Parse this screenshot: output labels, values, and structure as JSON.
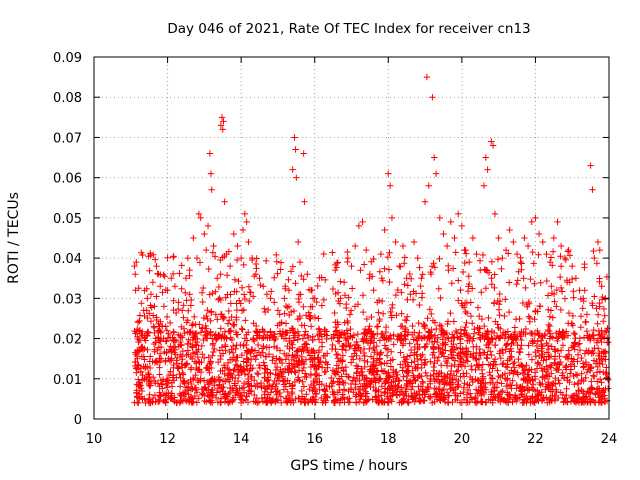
{
  "chart_data": {
    "type": "scatter",
    "title": "Day 046 of 2021, Rate Of TEC Index for receiver cn13",
    "xlabel": "GPS time / hours",
    "ylabel": "ROTI / TECUs",
    "xlim": [
      10,
      24
    ],
    "ylim": [
      0,
      0.09
    ],
    "x_ticks": [
      10,
      12,
      14,
      16,
      18,
      20,
      22,
      24
    ],
    "y_ticks": [
      0,
      0.01,
      0.02,
      0.03,
      0.04,
      0.05,
      0.06,
      0.07,
      0.08,
      0.09
    ],
    "x_tick_labels": [
      "10",
      "12",
      "14",
      "16",
      "18",
      "20",
      "22",
      "24"
    ],
    "y_tick_labels": [
      "0",
      "0.01",
      "0.02",
      "0.03",
      "0.04",
      "0.05",
      "0.06",
      "0.07",
      "0.08",
      "0.09"
    ],
    "grid": true,
    "marker": "+",
    "color": "#ff0000",
    "series": [
      {
        "name": "ROTI",
        "points": [
          [
            11.1,
            0.038
          ],
          [
            11.12,
            0.036
          ],
          [
            11.15,
            0.039
          ],
          [
            11.13,
            0.032
          ],
          [
            11.18,
            0.015
          ],
          [
            11.25,
            0.022
          ],
          [
            11.35,
            0.027
          ],
          [
            11.45,
            0.03
          ],
          [
            11.55,
            0.031
          ],
          [
            11.6,
            0.034
          ],
          [
            11.7,
            0.038
          ],
          [
            11.75,
            0.036
          ],
          [
            11.8,
            0.033
          ],
          [
            11.9,
            0.028
          ],
          [
            12.0,
            0.032
          ],
          [
            12.1,
            0.035
          ],
          [
            12.2,
            0.033
          ],
          [
            12.3,
            0.029
          ],
          [
            12.4,
            0.027
          ],
          [
            12.5,
            0.035
          ],
          [
            12.55,
            0.04
          ],
          [
            12.6,
            0.037
          ],
          [
            12.7,
            0.045
          ],
          [
            12.8,
            0.04
          ],
          [
            12.85,
            0.051
          ],
          [
            12.9,
            0.05
          ],
          [
            13.0,
            0.046
          ],
          [
            13.05,
            0.042
          ],
          [
            13.1,
            0.048
          ],
          [
            13.15,
            0.066
          ],
          [
            13.18,
            0.061
          ],
          [
            13.2,
            0.057
          ],
          [
            13.25,
            0.043
          ],
          [
            13.35,
            0.035
          ],
          [
            13.45,
            0.073
          ],
          [
            13.48,
            0.075
          ],
          [
            13.5,
            0.072
          ],
          [
            13.52,
            0.074
          ],
          [
            13.55,
            0.054
          ],
          [
            13.6,
            0.041
          ],
          [
            13.7,
            0.038
          ],
          [
            13.8,
            0.046
          ],
          [
            13.9,
            0.043
          ],
          [
            14.0,
            0.04
          ],
          [
            14.05,
            0.047
          ],
          [
            14.1,
            0.051
          ],
          [
            14.15,
            0.049
          ],
          [
            14.2,
            0.044
          ],
          [
            14.3,
            0.04
          ],
          [
            14.4,
            0.036
          ],
          [
            14.5,
            0.035
          ],
          [
            14.6,
            0.033
          ],
          [
            14.7,
            0.031
          ],
          [
            14.8,
            0.03
          ],
          [
            14.9,
            0.029
          ],
          [
            15.0,
            0.027
          ],
          [
            15.1,
            0.024
          ],
          [
            15.2,
            0.033
          ],
          [
            15.3,
            0.032
          ],
          [
            15.4,
            0.062
          ],
          [
            15.45,
            0.07
          ],
          [
            15.48,
            0.067
          ],
          [
            15.5,
            0.06
          ],
          [
            15.55,
            0.044
          ],
          [
            15.6,
            0.039
          ],
          [
            15.7,
            0.066
          ],
          [
            15.72,
            0.054
          ],
          [
            15.8,
            0.036
          ],
          [
            15.9,
            0.032
          ],
          [
            16.0,
            0.03
          ],
          [
            16.1,
            0.025
          ],
          [
            16.2,
            0.018
          ],
          [
            16.3,
            0.014
          ],
          [
            16.4,
            0.008
          ],
          [
            16.6,
            0.022
          ],
          [
            16.7,
            0.03
          ],
          [
            16.8,
            0.034
          ],
          [
            16.9,
            0.04
          ],
          [
            17.0,
            0.038
          ],
          [
            17.1,
            0.043
          ],
          [
            17.2,
            0.048
          ],
          [
            17.3,
            0.049
          ],
          [
            17.4,
            0.042
          ],
          [
            17.5,
            0.036
          ],
          [
            17.6,
            0.032
          ],
          [
            17.7,
            0.029
          ],
          [
            17.8,
            0.041
          ],
          [
            17.9,
            0.047
          ],
          [
            18.0,
            0.061
          ],
          [
            18.05,
            0.058
          ],
          [
            18.1,
            0.05
          ],
          [
            18.2,
            0.044
          ],
          [
            18.3,
            0.038
          ],
          [
            18.4,
            0.043
          ],
          [
            18.5,
            0.035
          ],
          [
            18.6,
            0.031
          ],
          [
            18.7,
            0.044
          ],
          [
            18.8,
            0.04
          ],
          [
            18.9,
            0.035
          ],
          [
            19.0,
            0.054
          ],
          [
            19.05,
            0.085
          ],
          [
            19.1,
            0.058
          ],
          [
            19.2,
            0.08
          ],
          [
            19.25,
            0.065
          ],
          [
            19.3,
            0.061
          ],
          [
            19.4,
            0.05
          ],
          [
            19.5,
            0.046
          ],
          [
            19.6,
            0.043
          ],
          [
            19.7,
            0.049
          ],
          [
            19.8,
            0.045
          ],
          [
            19.9,
            0.051
          ],
          [
            20.0,
            0.048
          ],
          [
            20.1,
            0.042
          ],
          [
            20.2,
            0.039
          ],
          [
            20.3,
            0.045
          ],
          [
            20.4,
            0.041
          ],
          [
            20.5,
            0.037
          ],
          [
            20.6,
            0.058
          ],
          [
            20.65,
            0.065
          ],
          [
            20.7,
            0.062
          ],
          [
            20.8,
            0.069
          ],
          [
            20.85,
            0.068
          ],
          [
            20.9,
            0.051
          ],
          [
            21.0,
            0.045
          ],
          [
            21.1,
            0.04
          ],
          [
            21.2,
            0.042
          ],
          [
            21.3,
            0.047
          ],
          [
            21.4,
            0.044
          ],
          [
            21.5,
            0.041
          ],
          [
            21.6,
            0.039
          ],
          [
            21.7,
            0.045
          ],
          [
            21.8,
            0.043
          ],
          [
            21.9,
            0.049
          ],
          [
            22.0,
            0.05
          ],
          [
            22.1,
            0.046
          ],
          [
            22.2,
            0.044
          ],
          [
            22.3,
            0.041
          ],
          [
            22.4,
            0.039
          ],
          [
            22.5,
            0.045
          ],
          [
            22.6,
            0.049
          ],
          [
            22.7,
            0.043
          ],
          [
            22.8,
            0.04
          ],
          [
            22.9,
            0.042
          ],
          [
            23.0,
            0.038
          ],
          [
            23.1,
            0.035
          ],
          [
            23.2,
            0.032
          ],
          [
            23.3,
            0.03
          ],
          [
            23.4,
            0.026
          ],
          [
            23.5,
            0.063
          ],
          [
            23.55,
            0.057
          ],
          [
            23.6,
            0.04
          ],
          [
            23.7,
            0.044
          ],
          [
            23.75,
            0.042
          ],
          [
            23.8,
            0.033
          ],
          [
            23.9,
            0.03
          ],
          [
            23.95,
            0.019
          ]
        ]
      }
    ],
    "dense_band": {
      "segments": [
        {
          "x_range": [
            11.1,
            16.35
          ],
          "y_range": [
            0.004,
            0.022
          ]
        },
        {
          "x_range": [
            16.45,
            23.98
          ],
          "y_range": [
            0.004,
            0.022
          ]
        }
      ],
      "gap": [
        16.35,
        16.45
      ]
    }
  }
}
